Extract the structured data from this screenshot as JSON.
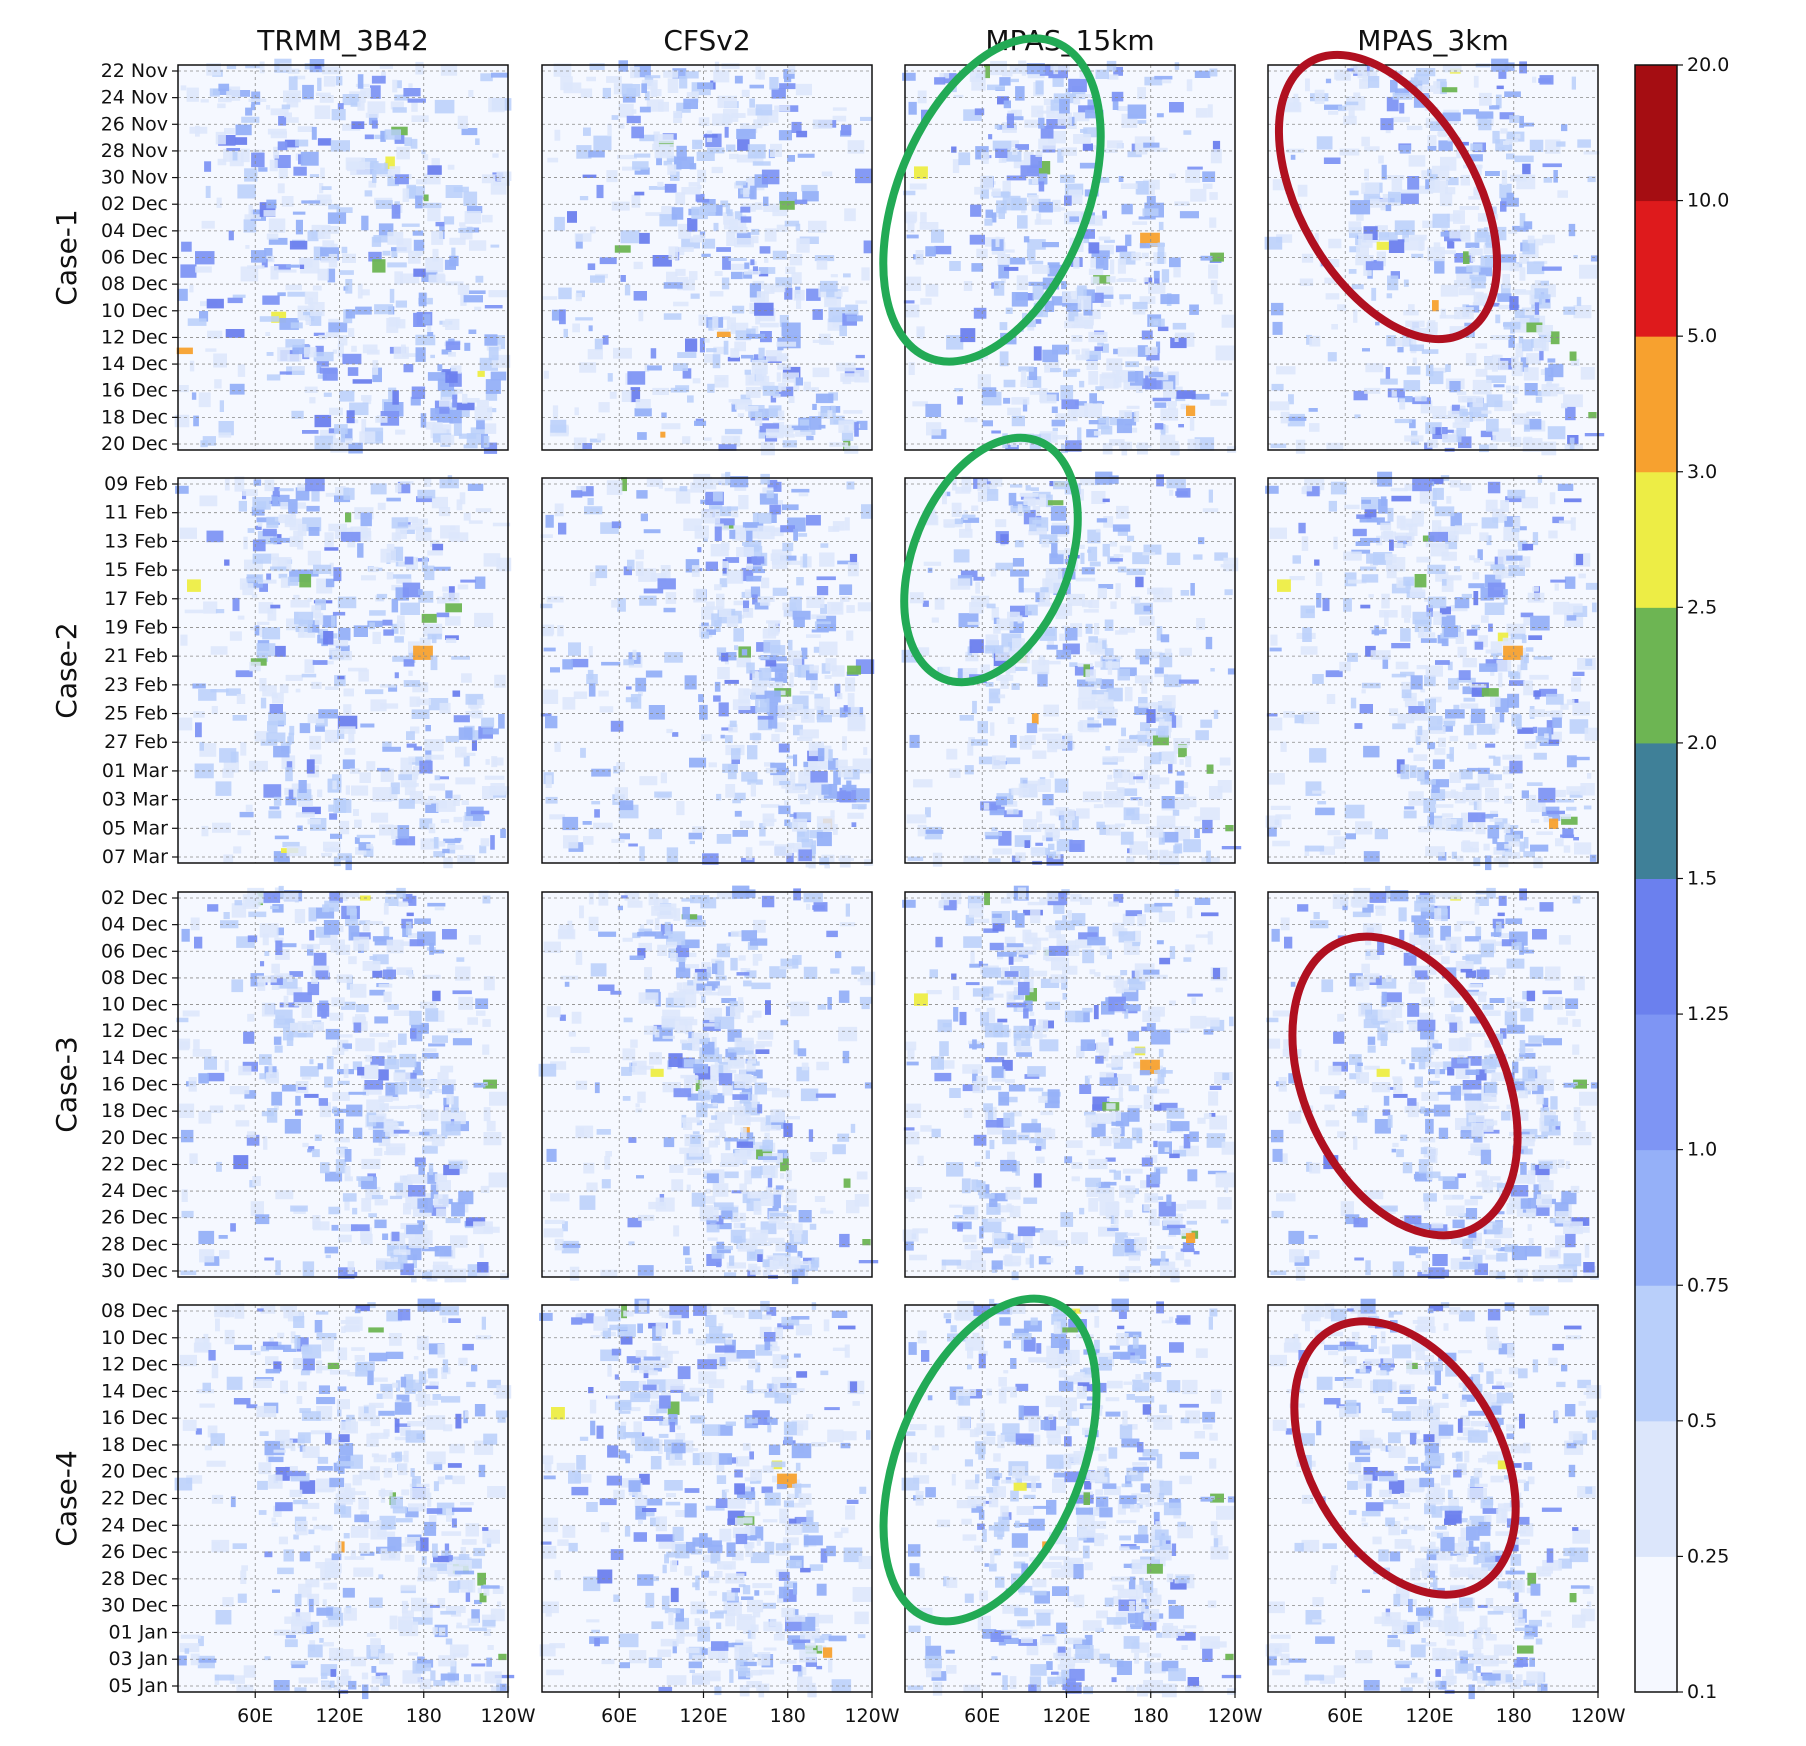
{
  "chart_data": {
    "type": "heatmap",
    "description_kind": "hovmoller",
    "columns": [
      "TRMM_3B42",
      "CFSv2",
      "MPAS_15km",
      "MPAS_3km"
    ],
    "rows": [
      {
        "label": "Case-1",
        "dates": [
          "22 Nov",
          "24 Nov",
          "26 Nov",
          "28 Nov",
          "30 Nov",
          "02 Dec",
          "04 Dec",
          "06 Dec",
          "08 Dec",
          "10 Dec",
          "12 Dec",
          "14 Dec",
          "16 Dec",
          "18 Dec",
          "20 Dec"
        ],
        "highlights": [
          {
            "column": "MPAS_15km",
            "color": "#22aa55"
          },
          {
            "column": "MPAS_3km",
            "color": "#b01020"
          }
        ]
      },
      {
        "label": "Case-2",
        "dates": [
          "09 Feb",
          "11 Feb",
          "13 Feb",
          "15 Feb",
          "17 Feb",
          "19 Feb",
          "21 Feb",
          "23 Feb",
          "25 Feb",
          "27 Feb",
          "01 Mar",
          "03 Mar",
          "05 Mar",
          "07 Mar"
        ],
        "highlights": [
          {
            "column": "MPAS_15km",
            "color": "#22aa55"
          }
        ]
      },
      {
        "label": "Case-3",
        "dates": [
          "02 Dec",
          "04 Dec",
          "06 Dec",
          "08 Dec",
          "10 Dec",
          "12 Dec",
          "14 Dec",
          "16 Dec",
          "18 Dec",
          "20 Dec",
          "22 Dec",
          "24 Dec",
          "26 Dec",
          "28 Dec",
          "30 Dec"
        ],
        "highlights": [
          {
            "column": "MPAS_3km",
            "color": "#b01020"
          }
        ]
      },
      {
        "label": "Case-4",
        "dates": [
          "08 Dec",
          "10 Dec",
          "12 Dec",
          "14 Dec",
          "16 Dec",
          "18 Dec",
          "20 Dec",
          "22 Dec",
          "24 Dec",
          "26 Dec",
          "28 Dec",
          "30 Dec",
          "01 Jan",
          "03 Jan",
          "05 Jan"
        ],
        "highlights": [
          {
            "column": "MPAS_15km",
            "color": "#22aa55"
          },
          {
            "column": "MPAS_3km",
            "color": "#b01020"
          }
        ]
      }
    ],
    "x_ticks": [
      "60E",
      "120E",
      "180",
      "120W"
    ],
    "x_tick_lon": [
      60,
      120,
      180,
      240
    ],
    "x_range_lon": [
      5,
      240
    ],
    "grid": true,
    "colorbar": {
      "levels": [
        "0.1",
        "0.25",
        "0.5",
        "0.75",
        "1.0",
        "1.25",
        "1.5",
        "2.0",
        "2.5",
        "3.0",
        "5.0",
        "10.0",
        "20.0"
      ],
      "colors": [
        "#f5f8ff",
        "#dce6fb",
        "#b9cffa",
        "#95b0f8",
        "#7e95f4",
        "#6b80ee",
        "#3f8098",
        "#6db553",
        "#eded45",
        "#f7a12f",
        "#de1a1c",
        "#a50d12",
        "#4a0206"
      ]
    }
  }
}
